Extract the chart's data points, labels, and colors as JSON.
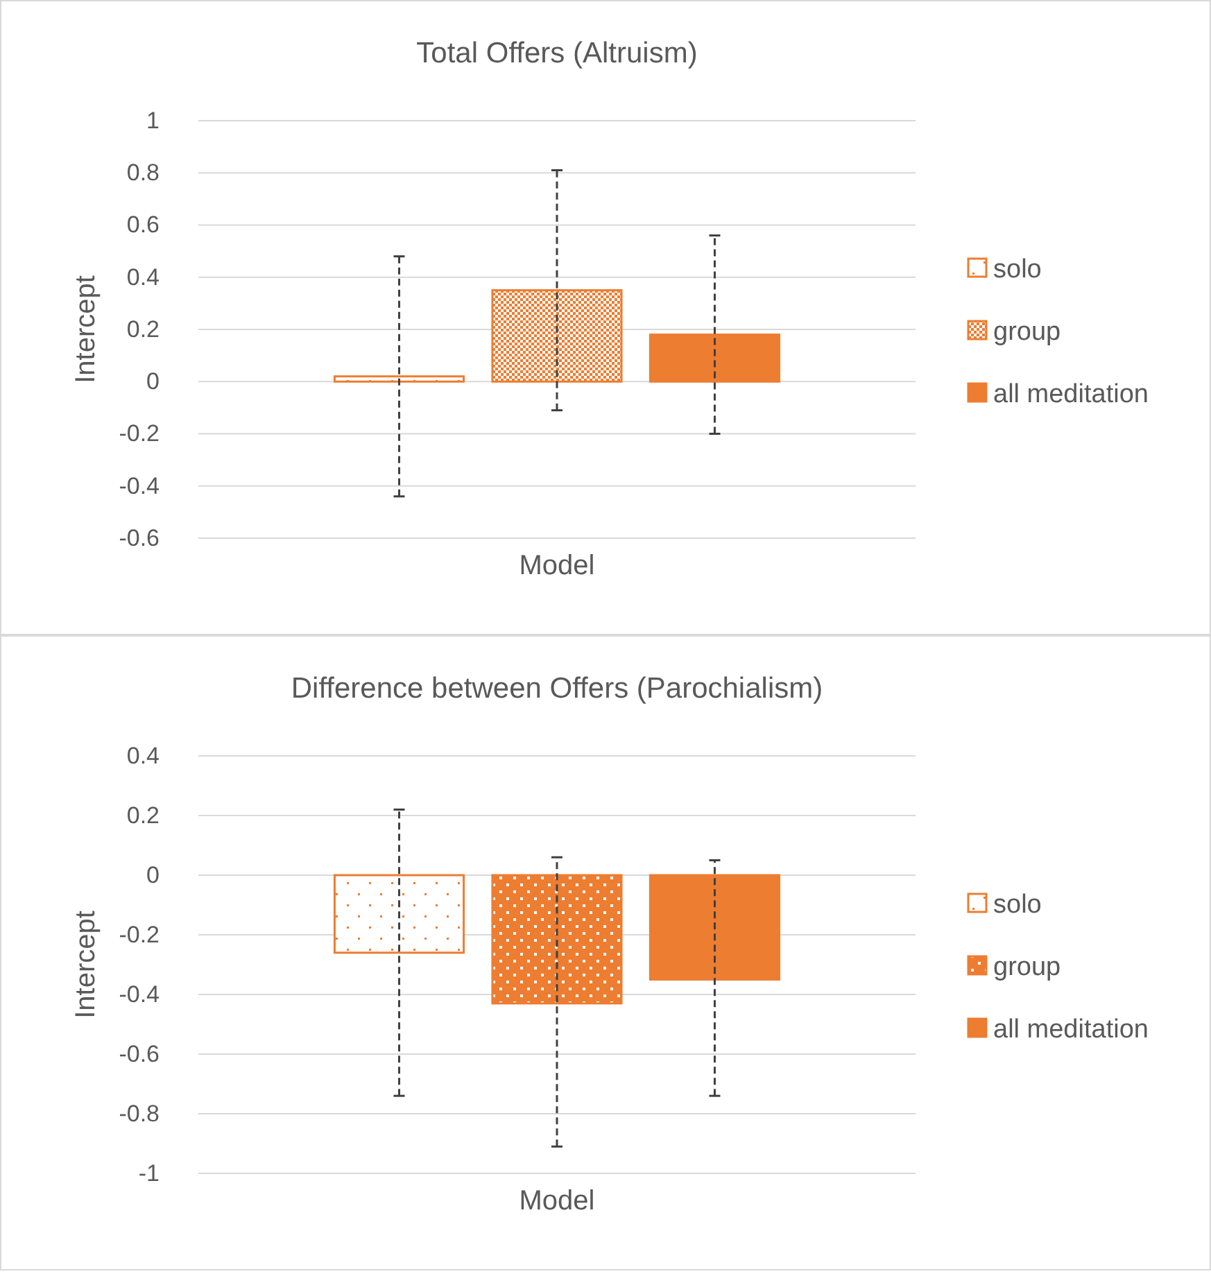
{
  "chart_data": [
    {
      "type": "bar",
      "title": "Total Offers (Altruism)",
      "ylabel": "Intercept",
      "categories": [
        "Model"
      ],
      "ylim": [
        -0.6,
        1
      ],
      "yticks": [
        -0.6,
        -0.4,
        -0.2,
        0,
        0.2,
        0.4,
        0.6,
        0.8,
        1
      ],
      "grid": "y",
      "legend": "right",
      "series": [
        {
          "name": "solo",
          "color": "#ed7d31",
          "values": [
            0.02
          ],
          "errors": [
            [
              -0.44,
              0.48
            ]
          ]
        },
        {
          "name": "group",
          "color": "#ed7d31",
          "values": [
            0.35
          ],
          "errors": [
            [
              -0.11,
              0.81
            ]
          ]
        },
        {
          "name": "all meditation",
          "color": "#ed7d31",
          "values": [
            0.18
          ],
          "errors": [
            [
              -0.2,
              0.56
            ]
          ]
        }
      ]
    },
    {
      "type": "bar",
      "title": "Difference between Offers (Parochialism)",
      "ylabel": "Intercept",
      "categories": [
        "Model"
      ],
      "ylim": [
        -1,
        0.4
      ],
      "yticks": [
        -1,
        -0.8,
        -0.6,
        -0.4,
        -0.2,
        0,
        0.2,
        0.4
      ],
      "grid": "y",
      "legend": "right",
      "series": [
        {
          "name": "solo",
          "color": "#ed7d31",
          "values": [
            -0.26
          ],
          "errors": [
            [
              -0.74,
              0.22
            ]
          ]
        },
        {
          "name": "group",
          "color": "#ed7d31",
          "values": [
            -0.43
          ],
          "errors": [
            [
              -0.91,
              0.06
            ]
          ]
        },
        {
          "name": "all meditation",
          "color": "#ed7d31",
          "values": [
            -0.35
          ],
          "errors": [
            [
              -0.74,
              0.05
            ]
          ]
        }
      ]
    }
  ]
}
